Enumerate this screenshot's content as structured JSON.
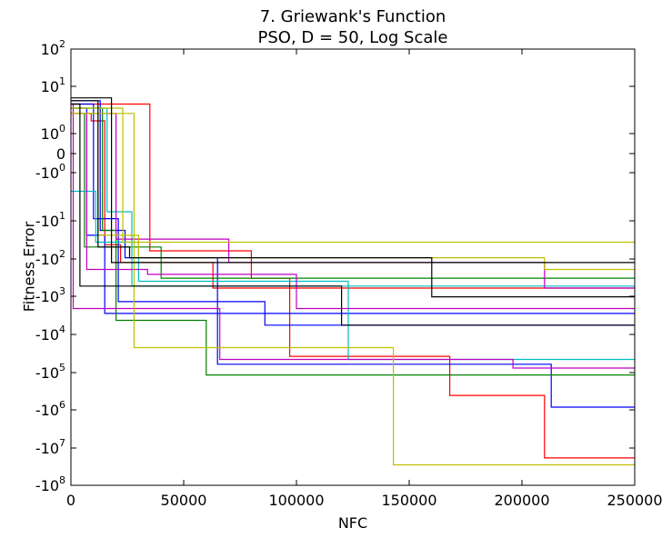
{
  "title_line1": "7.   Griewank's Function",
  "title_line2": "PSO, D = 50, Log Scale",
  "chart_data": {
    "type": "line",
    "title": "7.   Griewank's Function PSO, D = 50, Log Scale",
    "xlabel": "NFC",
    "ylabel": "Fitness Error",
    "xlim": [
      0,
      250000
    ],
    "yscale": "symlog",
    "ylim": [
      -100000000.0,
      100.0
    ],
    "grid": false,
    "legend": "none",
    "x_ticks": [
      "0",
      "50000",
      "100000",
      "150000",
      "200000",
      "250000"
    ],
    "y_ticks": [
      {
        "base": "10",
        "exp": "2"
      },
      {
        "base": "10",
        "exp": "1"
      },
      {
        "base": "10",
        "exp": "0"
      },
      {
        "base": "0",
        "exp": ""
      },
      {
        "base": "-10",
        "exp": "0"
      },
      {
        "base": "-10",
        "exp": "1"
      },
      {
        "base": "-10",
        "exp": "2"
      },
      {
        "base": "-10",
        "exp": "3"
      },
      {
        "base": "-10",
        "exp": "4"
      },
      {
        "base": "-10",
        "exp": "5"
      },
      {
        "base": "-10",
        "exp": "6"
      },
      {
        "base": "-10",
        "exp": "7"
      },
      {
        "base": "-10",
        "exp": "8"
      }
    ],
    "series": [
      {
        "color": "#ff0000",
        "points": [
          [
            0,
            3
          ],
          [
            9000,
            3
          ],
          [
            9000,
            2
          ],
          [
            15000,
            2
          ],
          [
            15000,
            -70
          ],
          [
            22000,
            -70
          ],
          [
            22000,
            -200
          ],
          [
            63000,
            -200
          ],
          [
            63000,
            -900
          ],
          [
            250000,
            -900
          ]
        ]
      },
      {
        "color": "#ff0000",
        "points": [
          [
            0,
            5
          ],
          [
            35000,
            5
          ],
          [
            35000,
            -100
          ],
          [
            80000,
            -100
          ],
          [
            80000,
            -500
          ],
          [
            97000,
            -500
          ],
          [
            97000,
            -50000
          ],
          [
            168000,
            -50000
          ],
          [
            168000,
            -500000
          ],
          [
            210000,
            -500000
          ],
          [
            210000,
            -20000000
          ],
          [
            250000,
            -20000000
          ]
        ]
      },
      {
        "color": "#0000ff",
        "points": [
          [
            0,
            6
          ],
          [
            13000,
            6
          ],
          [
            13000,
            -30
          ],
          [
            24000,
            -30
          ],
          [
            24000,
            -150
          ],
          [
            65000,
            -150
          ],
          [
            65000,
            -80000
          ],
          [
            213000,
            -80000
          ],
          [
            213000,
            -1000000
          ],
          [
            250000,
            -1000000
          ]
        ]
      },
      {
        "color": "#0000ff",
        "points": [
          [
            0,
            5
          ],
          [
            10000,
            5
          ],
          [
            10000,
            -15
          ],
          [
            21000,
            -15
          ],
          [
            21000,
            -2000
          ],
          [
            86000,
            -2000
          ],
          [
            86000,
            -8000
          ],
          [
            250000,
            -8000
          ]
        ]
      },
      {
        "color": "#0000ff",
        "points": [
          [
            0,
            4
          ],
          [
            7000,
            4
          ],
          [
            7000,
            -40
          ],
          [
            15000,
            -40
          ],
          [
            15000,
            -4000
          ],
          [
            250000,
            -4000
          ]
        ]
      },
      {
        "color": "#008000",
        "points": [
          [
            0,
            4
          ],
          [
            14000,
            4
          ],
          [
            14000,
            -30
          ],
          [
            20000,
            -30
          ],
          [
            20000,
            -6000
          ],
          [
            60000,
            -6000
          ],
          [
            60000,
            -150000
          ],
          [
            250000,
            -150000
          ]
        ]
      },
      {
        "color": "#008000",
        "points": [
          [
            0,
            3
          ],
          [
            6000,
            3
          ],
          [
            6000,
            -80
          ],
          [
            40000,
            -80
          ],
          [
            40000,
            -500
          ],
          [
            250000,
            -500
          ]
        ]
      },
      {
        "color": "#00bfbf",
        "points": [
          [
            0,
            -3
          ],
          [
            11000,
            -3
          ],
          [
            11000,
            -60
          ],
          [
            30000,
            -60
          ],
          [
            30000,
            -600
          ],
          [
            123000,
            -600
          ],
          [
            123000,
            -60000
          ],
          [
            250000,
            -60000
          ]
        ]
      },
      {
        "color": "#00bfbf",
        "points": [
          [
            0,
            4
          ],
          [
            16000,
            4
          ],
          [
            16000,
            -10
          ],
          [
            27000,
            -10
          ],
          [
            27000,
            -800
          ],
          [
            250000,
            -800
          ]
        ]
      },
      {
        "color": "#bf00bf",
        "points": [
          [
            0,
            3
          ],
          [
            7000,
            3
          ],
          [
            7000,
            -300
          ],
          [
            34000,
            -300
          ],
          [
            34000,
            -400
          ],
          [
            100000,
            -400
          ],
          [
            100000,
            -3000
          ],
          [
            250000,
            -3000
          ]
        ]
      },
      {
        "color": "#bf00bf",
        "points": [
          [
            0,
            5
          ],
          [
            1000,
            5
          ],
          [
            1000,
            -3000
          ],
          [
            66000,
            -3000
          ],
          [
            66000,
            -60000
          ],
          [
            196000,
            -60000
          ],
          [
            196000,
            -100000
          ],
          [
            250000,
            -100000
          ]
        ]
      },
      {
        "color": "#bf00bf",
        "points": [
          [
            0,
            3
          ],
          [
            20000,
            3
          ],
          [
            20000,
            -50
          ],
          [
            70000,
            -50
          ],
          [
            70000,
            -200
          ],
          [
            210000,
            -200
          ],
          [
            210000,
            -900
          ],
          [
            250000,
            -900
          ]
        ]
      },
      {
        "color": "#bfbf00",
        "points": [
          [
            0,
            3
          ],
          [
            28000,
            3
          ],
          [
            28000,
            -3
          ],
          [
            28000,
            -30000
          ],
          [
            143000,
            -30000
          ],
          [
            143000,
            -30000000
          ],
          [
            250000,
            -30000000
          ]
        ]
      },
      {
        "color": "#bfbf00",
        "points": [
          [
            0,
            4
          ],
          [
            23000,
            4
          ],
          [
            23000,
            -60
          ],
          [
            250000,
            -60
          ]
        ]
      },
      {
        "color": "#bfbf00",
        "points": [
          [
            0,
            3
          ],
          [
            12000,
            3
          ],
          [
            12000,
            -40
          ],
          [
            30000,
            -40
          ],
          [
            30000,
            -150
          ],
          [
            210000,
            -150
          ],
          [
            210000,
            -300
          ],
          [
            250000,
            -300
          ]
        ]
      },
      {
        "color": "#000000",
        "points": [
          [
            0,
            6
          ],
          [
            12000,
            6
          ],
          [
            12000,
            -80
          ],
          [
            26000,
            -80
          ],
          [
            26000,
            -150
          ],
          [
            160000,
            -150
          ],
          [
            160000,
            -1500
          ],
          [
            250000,
            -1500
          ]
        ]
      },
      {
        "color": "#000000",
        "points": [
          [
            0,
            5
          ],
          [
            4000,
            5
          ],
          [
            4000,
            -800
          ],
          [
            120000,
            -800
          ],
          [
            120000,
            -8000
          ],
          [
            250000,
            -8000
          ]
        ]
      },
      {
        "color": "#000000",
        "points": [
          [
            0,
            7
          ],
          [
            18000,
            7
          ],
          [
            18000,
            -200
          ],
          [
            250000,
            -200
          ]
        ]
      }
    ]
  }
}
